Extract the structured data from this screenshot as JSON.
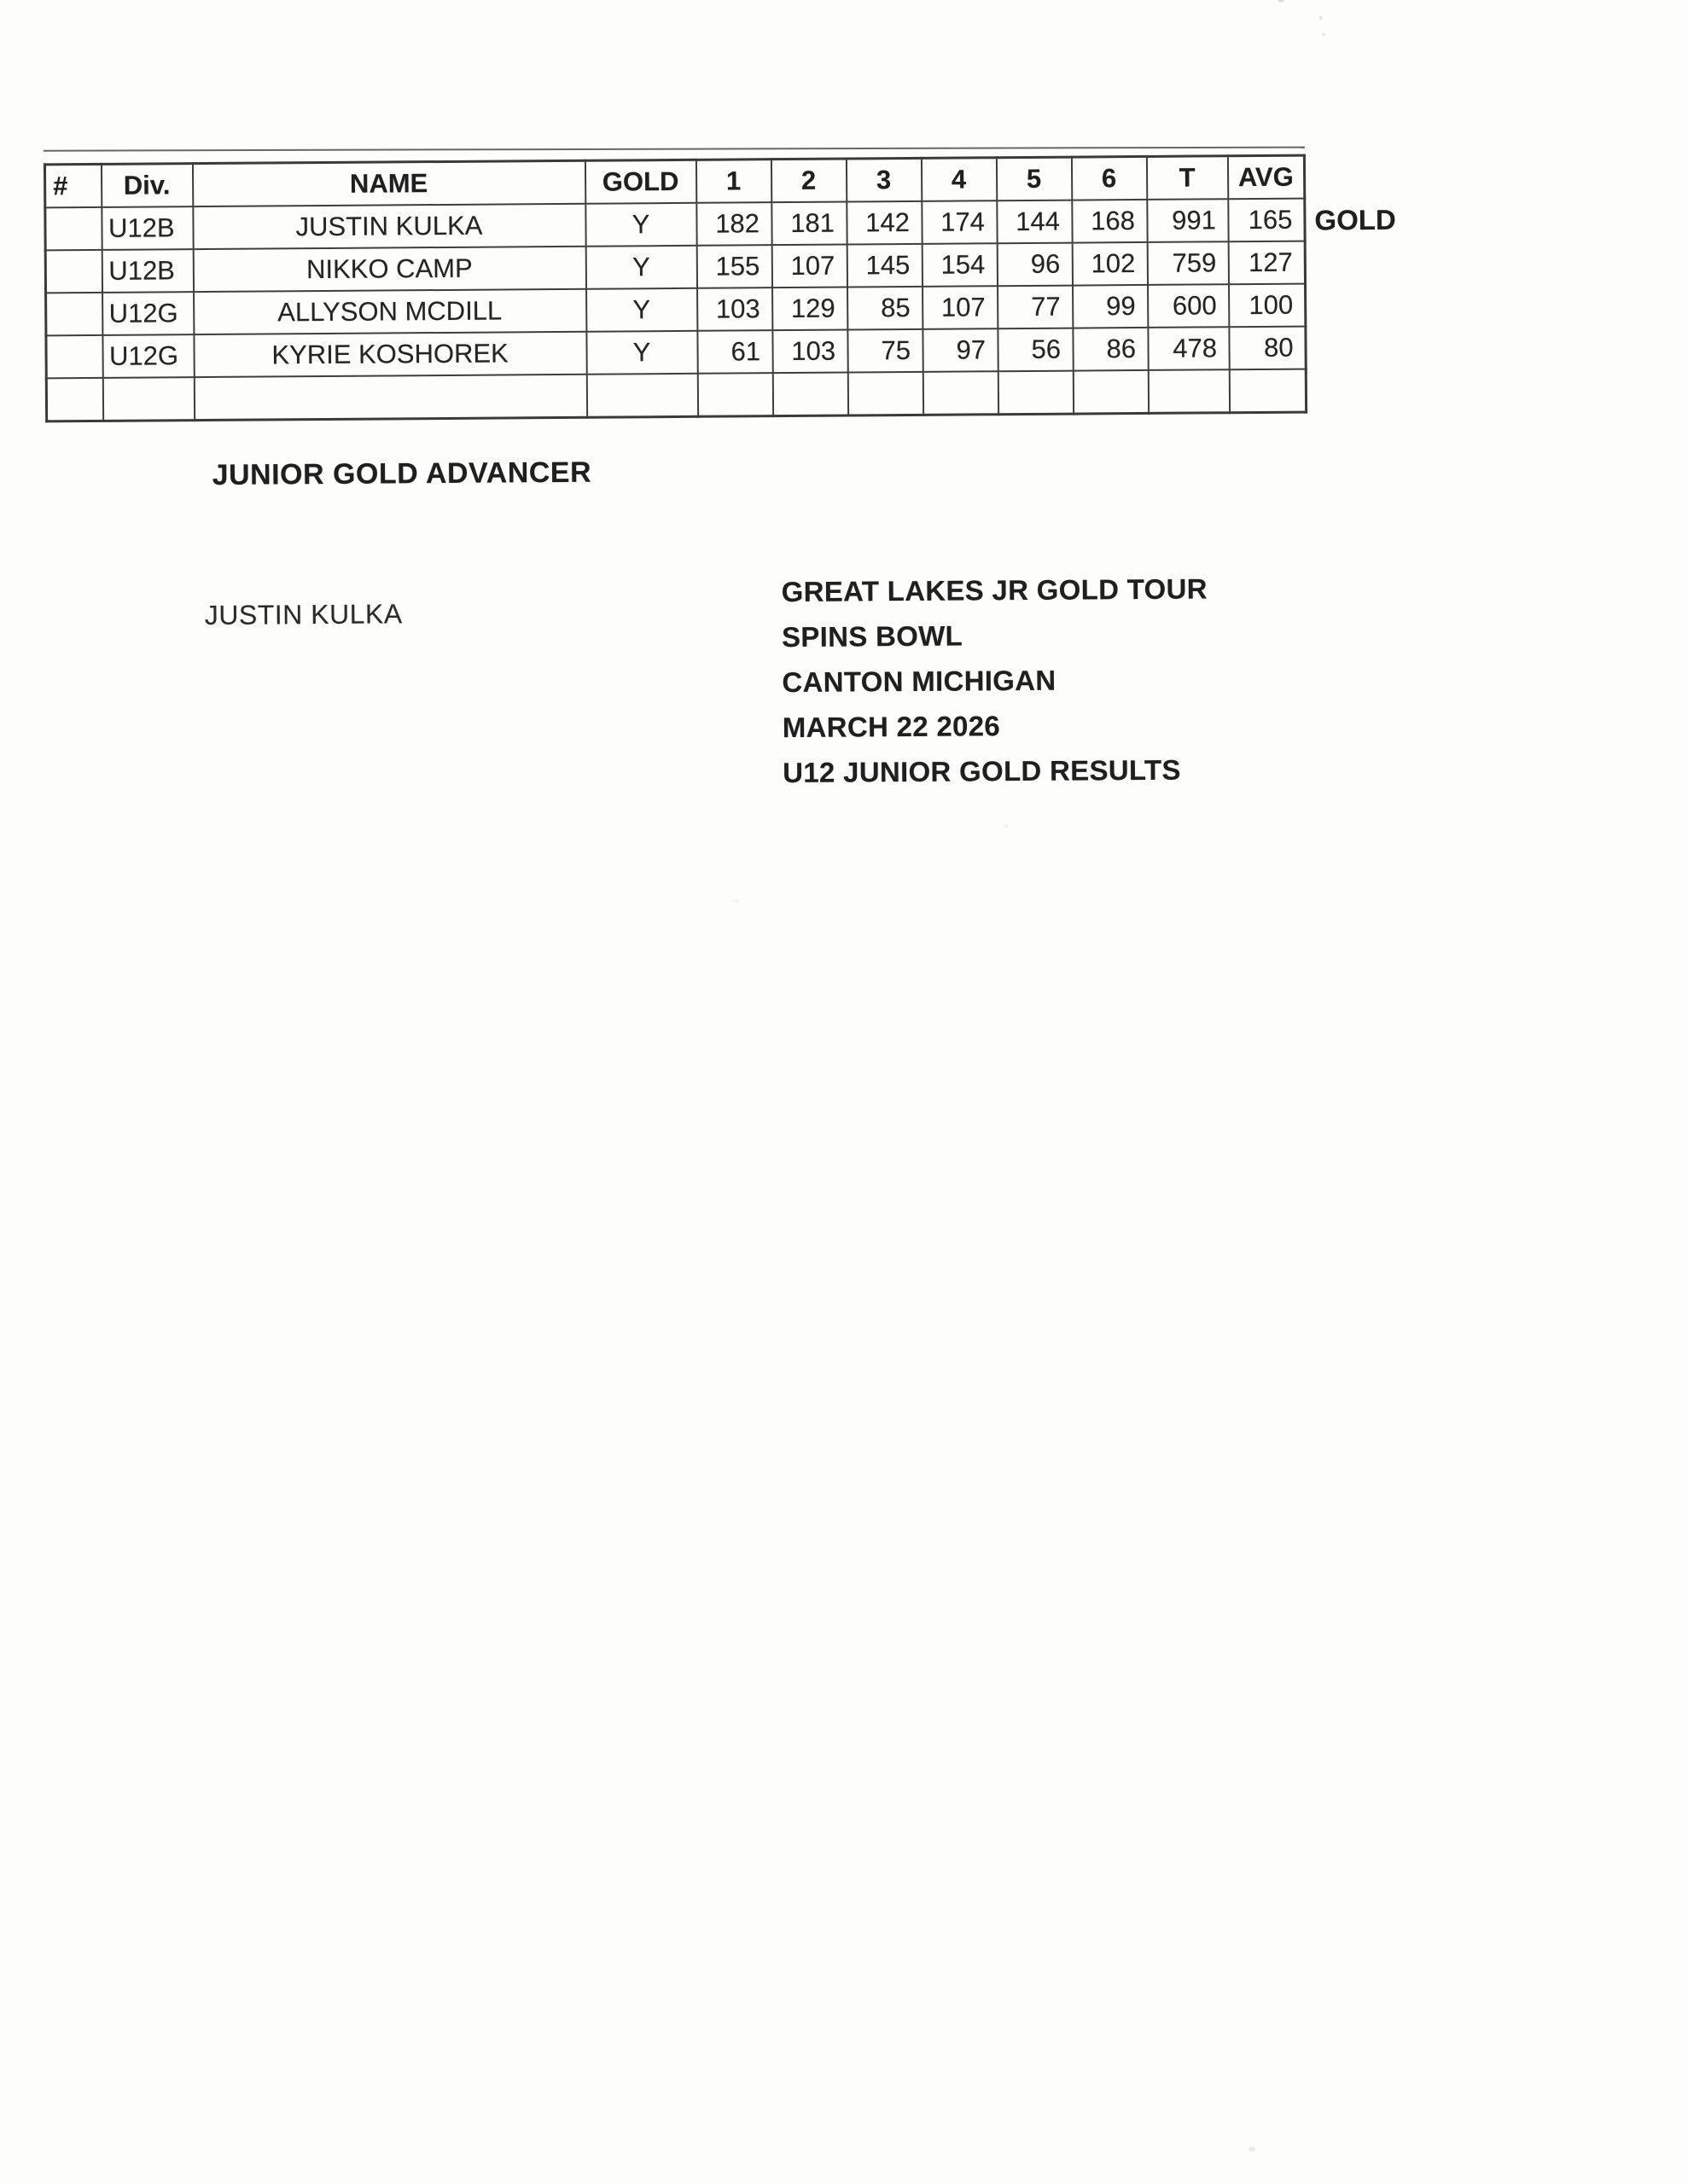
{
  "table": {
    "headers": [
      "#",
      "Div.",
      "NAME",
      "GOLD",
      "1",
      "2",
      "3",
      "4",
      "5",
      "6",
      "T",
      "AVG"
    ],
    "rows": [
      [
        "",
        "U12B",
        "JUSTIN KULKA",
        "Y",
        "182",
        "181",
        "142",
        "174",
        "144",
        "168",
        "991",
        "165"
      ],
      [
        "",
        "U12B",
        "NIKKO CAMP",
        "Y",
        "155",
        "107",
        "145",
        "154",
        "96",
        "102",
        "759",
        "127"
      ],
      [
        "",
        "U12G",
        "ALLYSON MCDILL",
        "Y",
        "103",
        "129",
        "85",
        "107",
        "77",
        "99",
        "600",
        "100"
      ],
      [
        "",
        "U12G",
        "KYRIE KOSHOREK",
        "Y",
        "61",
        "103",
        "75",
        "97",
        "56",
        "86",
        "478",
        "80"
      ],
      [
        "",
        "",
        "",
        "",
        "",
        "",
        "",
        "",
        "",
        "",
        "",
        ""
      ]
    ],
    "side_note": "GOLD"
  },
  "advancer": {
    "heading": "JUNIOR GOLD ADVANCER",
    "name": "JUSTIN KULKA"
  },
  "event": {
    "line1": "GREAT LAKES JR GOLD TOUR",
    "line2": "SPINS BOWL",
    "line3": "CANTON MICHIGAN",
    "line4": "MARCH 22 2026",
    "line5": "U12 JUNIOR GOLD RESULTS"
  },
  "colors": {
    "paper": "#fdfdfc",
    "ink": "#242424",
    "border": "#3e3e3e"
  }
}
